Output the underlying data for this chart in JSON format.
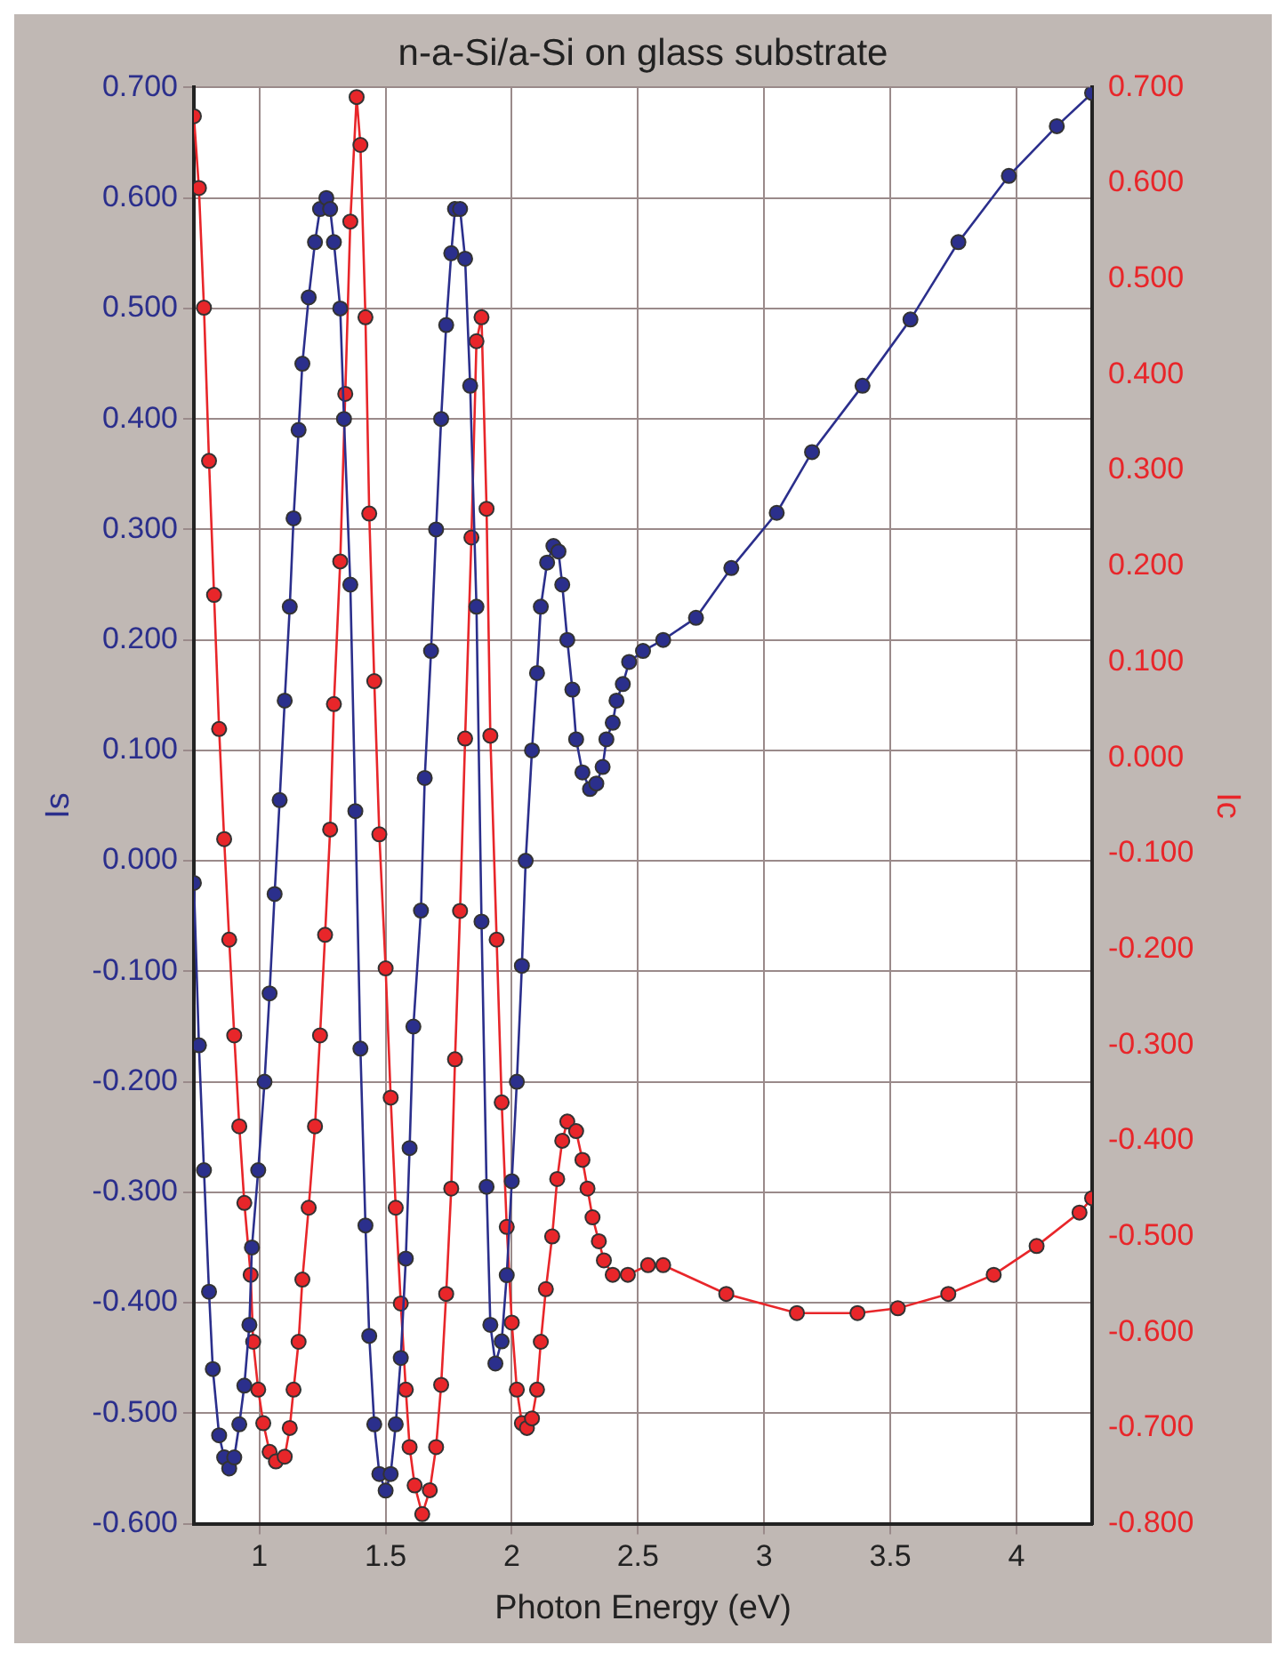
{
  "chart_data": {
    "type": "line",
    "title": "n-a-Si/a-Si on glass substrate",
    "xlabel": "Photon Energy (eV)",
    "ylabel": "Is",
    "y2label": "Ic",
    "marker": "circle",
    "grid": true,
    "legend": false,
    "xlim": [
      0.74,
      4.3
    ],
    "xticks": [
      1,
      1.5,
      2,
      2.5,
      3,
      3.5,
      4
    ],
    "ylim": [
      -0.6,
      0.7
    ],
    "yticks": [
      {
        "value": -0.6,
        "label": "-0.600"
      },
      {
        "value": -0.5,
        "label": "-0.500"
      },
      {
        "value": -0.4,
        "label": "-0.400"
      },
      {
        "value": -0.3,
        "label": "-0.300"
      },
      {
        "value": -0.2,
        "label": "-0.200"
      },
      {
        "value": -0.1,
        "label": "-0.100"
      },
      {
        "value": 0,
        "label": "0.000"
      },
      {
        "value": 0.1,
        "label": "0.100"
      },
      {
        "value": 0.2,
        "label": "0.200"
      },
      {
        "value": 0.3,
        "label": "0.300"
      },
      {
        "value": 0.4,
        "label": "0.400"
      },
      {
        "value": 0.5,
        "label": "0.500"
      },
      {
        "value": 0.6,
        "label": "0.600"
      },
      {
        "value": 0.7,
        "label": "0.700"
      }
    ],
    "y2lim": [
      -0.8,
      0.7
    ],
    "y2ticks": [
      {
        "value": -0.8,
        "label": "-0.800"
      },
      {
        "value": -0.7,
        "label": "-0.700"
      },
      {
        "value": -0.6,
        "label": "-0.600"
      },
      {
        "value": -0.5,
        "label": "-0.500"
      },
      {
        "value": -0.4,
        "label": "-0.400"
      },
      {
        "value": -0.3,
        "label": "-0.300"
      },
      {
        "value": -0.2,
        "label": "-0.200"
      },
      {
        "value": -0.1,
        "label": "-0.100"
      },
      {
        "value": 0,
        "label": "0.000"
      },
      {
        "value": 0.1,
        "label": "0.100"
      },
      {
        "value": 0.2,
        "label": "0.200"
      },
      {
        "value": 0.3,
        "label": "0.300"
      },
      {
        "value": 0.4,
        "label": "0.400"
      },
      {
        "value": 0.5,
        "label": "0.500"
      },
      {
        "value": 0.6,
        "label": "0.600"
      },
      {
        "value": 0.7,
        "label": "0.700"
      }
    ],
    "series": [
      {
        "color": "#2b2f8c",
        "x": [
          0.74,
          0.76,
          0.78,
          0.8,
          0.815,
          0.84,
          0.86,
          0.88,
          0.9,
          0.92,
          0.94,
          0.96,
          0.97,
          0.995,
          1.02,
          1.04,
          1.06,
          1.08,
          1.1,
          1.12,
          1.135,
          1.155,
          1.17,
          1.195,
          1.22,
          1.24,
          1.265,
          1.28,
          1.295,
          1.32,
          1.335,
          1.36,
          1.38,
          1.4,
          1.42,
          1.435,
          1.455,
          1.475,
          1.5,
          1.52,
          1.54,
          1.56,
          1.58,
          1.595,
          1.61,
          1.64,
          1.655,
          1.68,
          1.7,
          1.72,
          1.74,
          1.76,
          1.775,
          1.795,
          1.815,
          1.835,
          1.86,
          1.88,
          1.9,
          1.915,
          1.935,
          1.96,
          1.98,
          2.0,
          2.02,
          2.04,
          2.055,
          2.08,
          2.1,
          2.115,
          2.14,
          2.165,
          2.185,
          2.2,
          2.22,
          2.24,
          2.255,
          2.28,
          2.31,
          2.335,
          2.36,
          2.375,
          2.4,
          2.415,
          2.44,
          2.465,
          2.52,
          2.6,
          2.73,
          2.87,
          3.05,
          3.19,
          3.39,
          3.58,
          3.77,
          3.97,
          4.16,
          4.3
        ],
        "values": [
          -0.02,
          -0.167,
          -0.28,
          -0.39,
          -0.46,
          -0.52,
          -0.54,
          -0.55,
          -0.54,
          -0.51,
          -0.475,
          -0.42,
          -0.35,
          -0.28,
          -0.2,
          -0.12,
          -0.03,
          0.055,
          0.145,
          0.23,
          0.31,
          0.39,
          0.45,
          0.51,
          0.56,
          0.59,
          0.6,
          0.59,
          0.56,
          0.5,
          0.4,
          0.25,
          0.045,
          -0.17,
          -0.33,
          -0.43,
          -0.51,
          -0.555,
          -0.57,
          -0.555,
          -0.51,
          -0.45,
          -0.36,
          -0.26,
          -0.15,
          -0.045,
          0.075,
          0.19,
          0.3,
          0.4,
          0.485,
          0.55,
          0.59,
          0.59,
          0.545,
          0.43,
          0.23,
          -0.055,
          -0.295,
          -0.42,
          -0.455,
          -0.435,
          -0.375,
          -0.29,
          -0.2,
          -0.095,
          0.0,
          0.1,
          0.17,
          0.23,
          0.27,
          0.285,
          0.28,
          0.25,
          0.2,
          0.155,
          0.11,
          0.08,
          0.065,
          0.07,
          0.085,
          0.11,
          0.125,
          0.145,
          0.16,
          0.18,
          0.19,
          0.2,
          0.22,
          0.265,
          0.315,
          0.37,
          0.43,
          0.49,
          0.56,
          0.62,
          0.665,
          0.695
        ]
      },
      {
        "color": "#e8262a",
        "axis": "y2",
        "x": [
          0.74,
          0.76,
          0.78,
          0.8,
          0.82,
          0.84,
          0.86,
          0.88,
          0.9,
          0.92,
          0.94,
          0.965,
          0.975,
          0.995,
          1.015,
          1.04,
          1.065,
          1.1,
          1.12,
          1.135,
          1.155,
          1.17,
          1.195,
          1.22,
          1.24,
          1.26,
          1.28,
          1.295,
          1.32,
          1.34,
          1.36,
          1.385,
          1.4,
          1.42,
          1.435,
          1.455,
          1.475,
          1.5,
          1.52,
          1.54,
          1.56,
          1.58,
          1.595,
          1.615,
          1.645,
          1.675,
          1.7,
          1.72,
          1.74,
          1.76,
          1.775,
          1.795,
          1.815,
          1.84,
          1.86,
          1.88,
          1.9,
          1.915,
          1.94,
          1.96,
          1.98,
          2.0,
          2.02,
          2.04,
          2.06,
          2.08,
          2.1,
          2.115,
          2.135,
          2.16,
          2.18,
          2.2,
          2.22,
          2.255,
          2.28,
          2.3,
          2.32,
          2.345,
          2.365,
          2.4,
          2.46,
          2.54,
          2.6,
          2.85,
          3.13,
          3.37,
          3.53,
          3.73,
          3.91,
          4.08,
          4.25,
          4.3
        ],
        "values": [
          0.67,
          0.595,
          0.47,
          0.31,
          0.17,
          0.03,
          -0.085,
          -0.19,
          -0.29,
          -0.385,
          -0.465,
          -0.54,
          -0.61,
          -0.66,
          -0.695,
          -0.725,
          -0.735,
          -0.73,
          -0.7,
          -0.66,
          -0.61,
          -0.545,
          -0.47,
          -0.385,
          -0.29,
          -0.185,
          -0.075,
          0.056,
          0.205,
          0.38,
          0.56,
          0.69,
          0.64,
          0.46,
          0.255,
          0.08,
          -0.08,
          -0.22,
          -0.355,
          -0.47,
          -0.57,
          -0.66,
          -0.72,
          -0.76,
          -0.79,
          -0.765,
          -0.72,
          -0.655,
          -0.56,
          -0.45,
          -0.315,
          -0.16,
          0.02,
          0.23,
          0.435,
          0.46,
          0.26,
          0.023,
          -0.19,
          -0.36,
          -0.49,
          -0.59,
          -0.66,
          -0.695,
          -0.7,
          -0.69,
          -0.66,
          -0.61,
          -0.555,
          -0.5,
          -0.44,
          -0.4,
          -0.38,
          -0.39,
          -0.42,
          -0.45,
          -0.48,
          -0.505,
          -0.525,
          -0.54,
          -0.54,
          -0.53,
          -0.53,
          -0.56,
          -0.58,
          -0.58,
          -0.575,
          -0.56,
          -0.54,
          -0.51,
          -0.475,
          -0.46
        ]
      }
    ]
  }
}
